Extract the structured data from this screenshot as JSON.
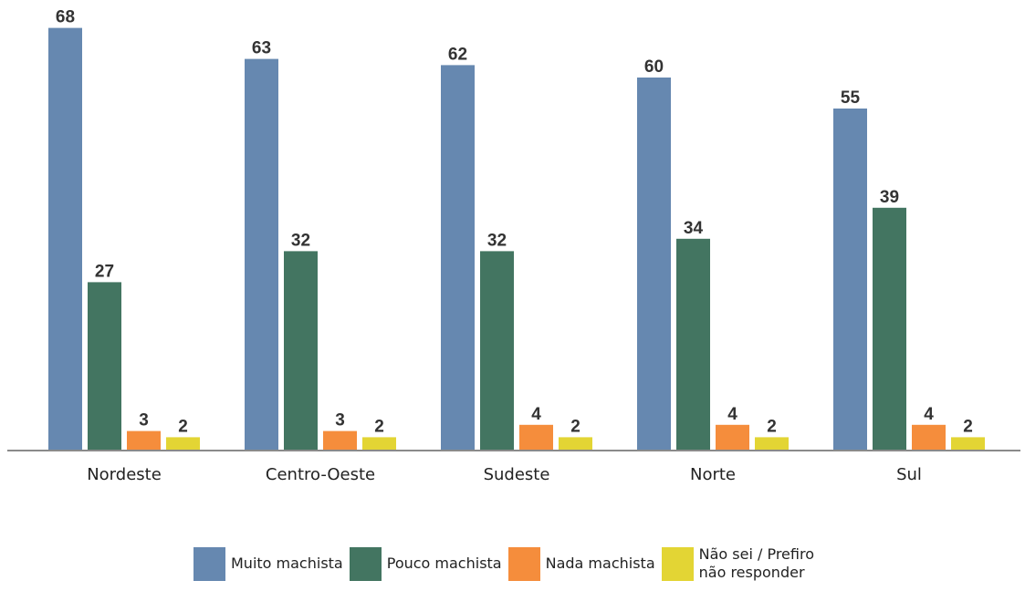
{
  "chart_data": {
    "type": "bar",
    "categories": [
      "Nordeste",
      "Centro-Oeste",
      "Sudeste",
      "Norte",
      "Sul"
    ],
    "series": [
      {
        "name": "Muito machista",
        "color": "#6688b0",
        "values": [
          68,
          63,
          62,
          60,
          55
        ]
      },
      {
        "name": "Pouco machista",
        "color": "#437561",
        "values": [
          27,
          32,
          32,
          34,
          39
        ]
      },
      {
        "name": "Nada machista",
        "color": "#f58d3c",
        "values": [
          3,
          3,
          4,
          4,
          4
        ]
      },
      {
        "name": "Não sei / Prefiro não responder",
        "color": "#e3d534",
        "values": [
          2,
          2,
          2,
          2,
          2
        ]
      }
    ],
    "ylim": [
      0,
      70
    ],
    "grid": false,
    "legend_position": "bottom",
    "title": "",
    "xlabel": "",
    "ylabel": ""
  },
  "legend": {
    "items": [
      {
        "label": "Muito machista",
        "color": "#6688b0"
      },
      {
        "label": "Pouco machista",
        "color": "#437561"
      },
      {
        "label": "Nada machista",
        "color": "#f58d3c"
      },
      {
        "label": "Não sei / Prefiro não responder",
        "color": "#e3d534"
      }
    ]
  }
}
